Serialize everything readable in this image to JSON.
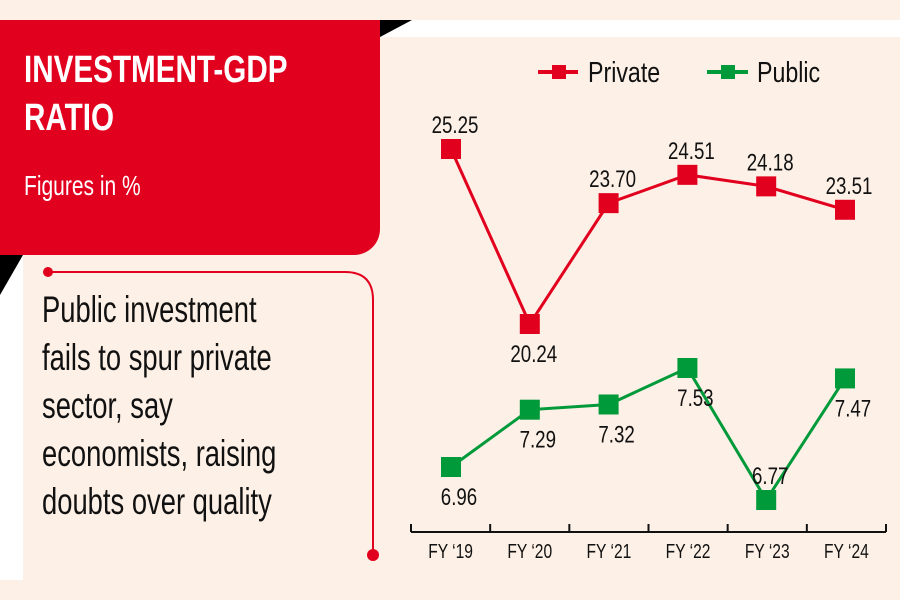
{
  "header": {
    "title_line1": "INVESTMENT-GDP",
    "title_line2": "RATIO",
    "subtitle": "Figures in %"
  },
  "headline": {
    "lines": [
      "Public investment",
      "fails to spur private",
      "sector, say",
      "economists, raising",
      "doubts over quality"
    ]
  },
  "colors": {
    "accent_red": "#e2001f",
    "public_green": "#009a3a",
    "background": "#fdf0e6"
  },
  "chart_data": {
    "type": "line",
    "title": "INVESTMENT-GDP RATIO",
    "subtitle": "Figures in %",
    "xlabel": "",
    "ylabel": "",
    "categories": [
      "FY ‘19",
      "FY ‘20",
      "FY ‘21",
      "FY ‘22",
      "FY ‘23",
      "FY ‘24"
    ],
    "legend_position": "top-right",
    "grid": false,
    "series": [
      {
        "name": "Private",
        "color": "#e2001f",
        "values": [
          25.25,
          20.24,
          23.7,
          24.51,
          24.18,
          23.51
        ],
        "labels": [
          "25.25",
          "20.24",
          "23.70",
          "24.51",
          "24.18",
          "23.51"
        ],
        "label_pos": [
          "above",
          "below",
          "above",
          "above",
          "above",
          "above"
        ]
      },
      {
        "name": "Public",
        "color": "#009a3a",
        "values": [
          6.96,
          7.29,
          7.32,
          7.53,
          6.77,
          7.47
        ],
        "labels": [
          "6.96",
          "7.29",
          "7.32",
          "7.53",
          "6.77",
          "7.47"
        ],
        "label_pos": [
          "below",
          "below",
          "below",
          "below",
          "above",
          "below"
        ]
      }
    ]
  }
}
